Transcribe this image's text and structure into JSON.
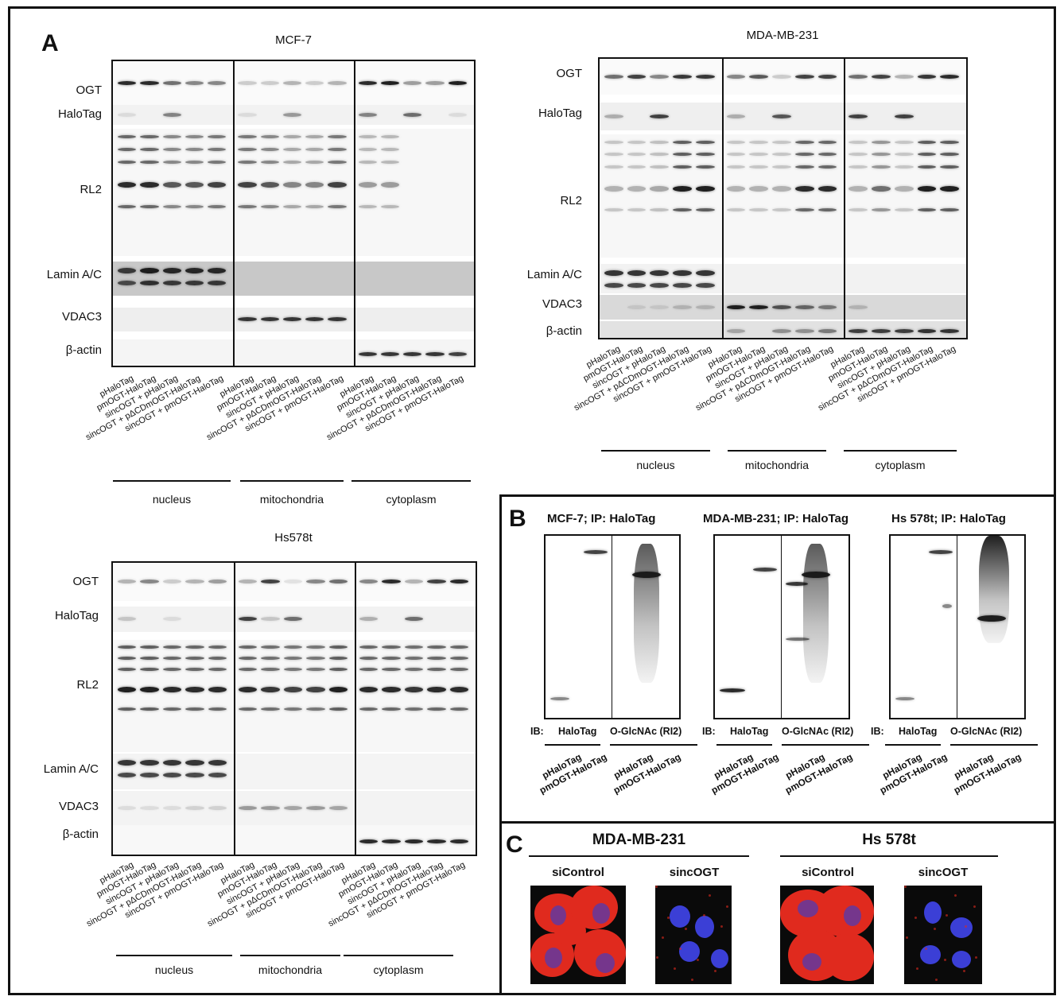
{
  "panel_letters": {
    "a": "A",
    "b": "B",
    "c": "C"
  },
  "panel_a": {
    "lane_labels": [
      "pHaloTag",
      "pmOGT-HaloTag",
      "sincOGT + pHaloTag",
      "sincOGT + pΔCDmOGT-HaloTag",
      "sincOGT + pmOGT-HaloTag"
    ],
    "compartments": [
      "nucleus",
      "mitochondria",
      "cytoplasm"
    ],
    "row_labels": [
      "OGT",
      "HaloTag",
      "RL2",
      "Lamin A/C",
      "VDAC3",
      "β-actin"
    ],
    "blots": [
      {
        "title": "MCF-7"
      },
      {
        "title": "MDA-MB-231"
      },
      {
        "title": "Hs578t"
      }
    ]
  },
  "panel_b": {
    "blots": [
      {
        "title": "MCF-7; IP: HaloTag"
      },
      {
        "title": "MDA-MB-231; IP: HaloTag"
      },
      {
        "title": "Hs 578t; IP: HaloTag"
      }
    ],
    "ib_prefix": "IB:",
    "ib_left": "HaloTag",
    "ib_right": "O-GlcNAc (RI2)",
    "lane_labels": [
      "pHaloTag",
      "pmOGT-HaloTag",
      "pHaloTag",
      "pmOGT-HaloTag"
    ]
  },
  "panel_c": {
    "groups": [
      {
        "title": "MDA-MB-231",
        "conditions": [
          "siControl",
          "sincOGT"
        ]
      },
      {
        "title": "Hs 578t",
        "conditions": [
          "siControl",
          "sincOGT"
        ]
      }
    ],
    "colors": {
      "stain_red": "#e02a1e",
      "nucleus_blue": "#3b3fd6",
      "background": "#0a0a0a"
    }
  }
}
